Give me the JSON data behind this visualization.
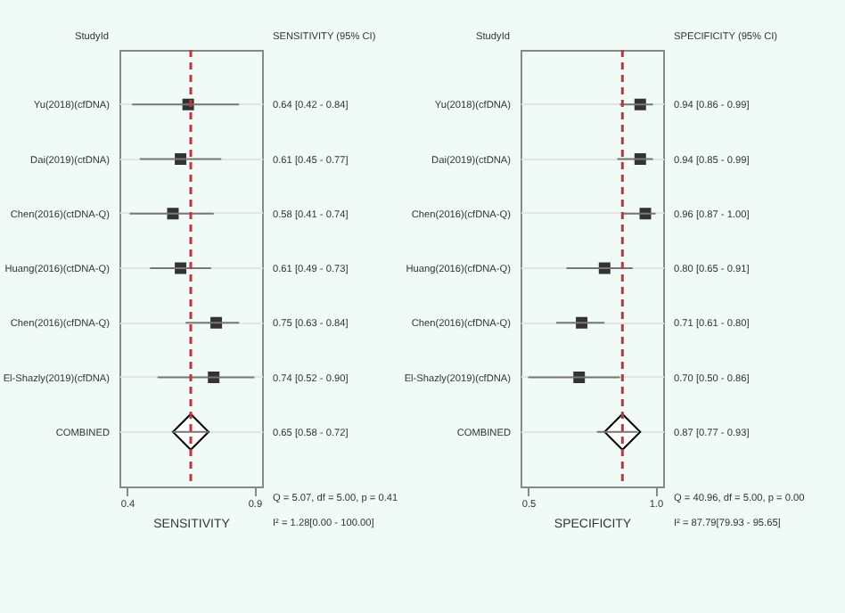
{
  "chart_data": [
    {
      "type": "scatter",
      "orientation": "horizontal",
      "xlabel": "SENSITIVITY",
      "categories": [
        "Yu(2018)(cfDNA)",
        "Dai(2019)(ctDNA)",
        "Chen(2016)(ctDNA-Q)",
        "Huang(2016)(ctDNA-Q)",
        "Chen(2016)(cfDNA-Q)",
        "El-Shazly(2019)(cfDNA)",
        "COMBINED"
      ],
      "series": [
        {
          "color": "#333333",
          "marker": "square",
          "values": [
            0.64,
            0.61,
            0.58,
            0.61,
            0.75,
            0.74,
            null
          ],
          "errors": [
            [
              0.42,
              0.84
            ],
            [
              0.45,
              0.77
            ],
            [
              0.41,
              0.74
            ],
            [
              0.49,
              0.73
            ],
            [
              0.63,
              0.84
            ],
            [
              0.52,
              0.9
            ],
            null
          ]
        },
        {
          "color": "#000000",
          "marker": "diamond",
          "values": [
            null,
            null,
            null,
            null,
            null,
            null,
            0.65
          ],
          "errors": [
            null,
            null,
            null,
            null,
            null,
            null,
            [
              0.58,
              0.72
            ]
          ]
        }
      ],
      "value_labels": [
        "0.64 [0.42 - 0.84]",
        "0.61 [0.45 - 0.77]",
        "0.58 [0.41 - 0.74]",
        "0.61 [0.49 - 0.73]",
        "0.75 [0.63 - 0.84]",
        "0.74 [0.52 - 0.90]",
        "0.65 [0.58 - 0.72]"
      ],
      "ref_lines": [
        {
          "axis": "x",
          "value": 0.65,
          "color": "#c8323c",
          "line_style": "dashed"
        }
      ],
      "annotations": [
        "StudyId",
        "SENSITIVITY (95% CI)",
        "Q = 5.07, df = 5.00, p = 0.41",
        "I² = 1.28[0.00 - 100.00]"
      ],
      "xlim": [
        0.37,
        0.93
      ],
      "xticks": [
        0.4,
        0.9
      ],
      "grid": "y"
    },
    {
      "type": "scatter",
      "orientation": "horizontal",
      "xlabel": "SPECIFICITY",
      "categories": [
        "Yu(2018)(cfDNA)",
        "Dai(2019)(ctDNA)",
        "Chen(2016)(cfDNA-Q)",
        "Huang(2016)(cfDNA-Q)",
        "Chen(2016)(cfDNA-Q)",
        "El-Shazly(2019)(cfDNA)",
        "COMBINED"
      ],
      "series": [
        {
          "color": "#333333",
          "marker": "square",
          "values": [
            0.94,
            0.94,
            0.96,
            0.8,
            0.71,
            0.7,
            null
          ],
          "errors": [
            [
              0.86,
              0.99
            ],
            [
              0.85,
              0.99
            ],
            [
              0.87,
              1.0
            ],
            [
              0.65,
              0.91
            ],
            [
              0.61,
              0.8
            ],
            [
              0.5,
              0.86
            ],
            null
          ]
        },
        {
          "color": "#000000",
          "marker": "diamond",
          "values": [
            null,
            null,
            null,
            null,
            null,
            null,
            0.87
          ],
          "errors": [
            null,
            null,
            null,
            null,
            null,
            null,
            [
              0.77,
              0.93
            ]
          ]
        }
      ],
      "value_labels": [
        "0.94 [0.86 - 0.99]",
        "0.94 [0.85 - 0.99]",
        "0.96 [0.87 - 1.00]",
        "0.80 [0.65 - 0.91]",
        "0.71 [0.61 - 0.80]",
        "0.70 [0.50 - 0.86]",
        "0.87 [0.77 - 0.93]"
      ],
      "ref_lines": [
        {
          "axis": "x",
          "value": 0.87,
          "color": "#c8323c",
          "line_style": "dashed"
        }
      ],
      "annotations": [
        "StudyId",
        "SPECIFICITY (95% CI)",
        "Q = 40.96, df = 5.00, p = 0.00",
        "I² = 87.79[79.93 - 95.65]"
      ],
      "xlim": [
        0.47,
        1.03
      ],
      "xticks": [
        0.5,
        {
          "value": 1.0,
          "label": "1.0"
        }
      ],
      "grid": "y"
    }
  ]
}
